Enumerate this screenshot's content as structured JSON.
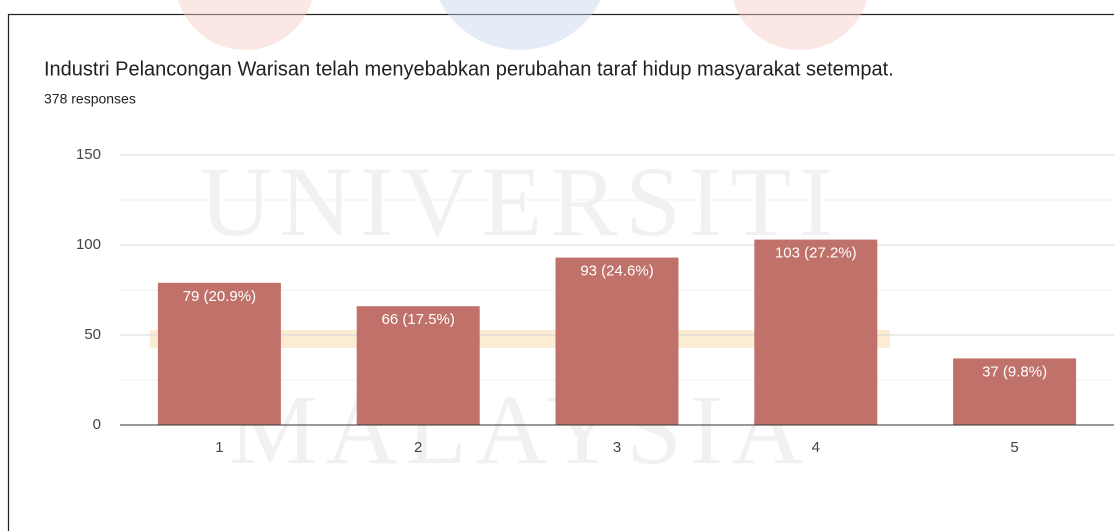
{
  "chart_data": {
    "type": "bar",
    "title": "Industri Pelancongan Warisan telah menyebabkan perubahan taraf hidup masyarakat setempat.",
    "subtitle": "378 responses",
    "categories": [
      "1",
      "2",
      "3",
      "4",
      "5"
    ],
    "values": [
      79,
      66,
      93,
      103,
      37
    ],
    "value_labels": [
      "79 (20.9%)",
      "66 (17.5%)",
      "93 (24.6%)",
      "103 (27.2%)",
      "37 (9.8%)"
    ],
    "color": "#c0726a",
    "ylim": [
      0,
      150
    ],
    "yticks": [
      0,
      50,
      100,
      150
    ],
    "minor_yticks": [
      25,
      75,
      125
    ],
    "grid": true,
    "watermark": [
      "UNIVERSITI",
      "MALAYSIA"
    ]
  }
}
